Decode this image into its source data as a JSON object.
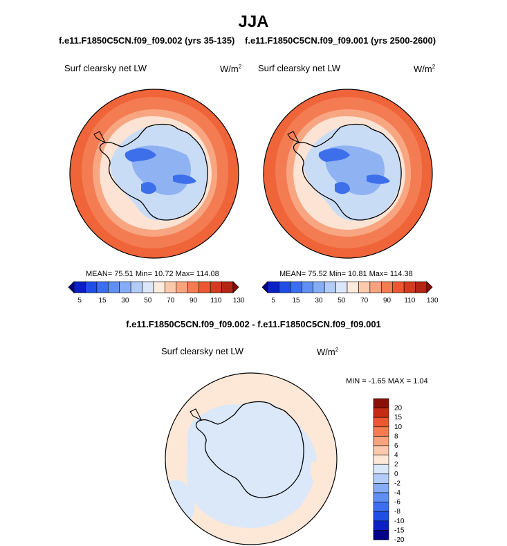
{
  "page_title": "JJA",
  "panels": {
    "left": {
      "case_title": "f.e11.F1850C5CN.f09_f09.002 (yrs 35-135)",
      "variable": "Surf clearsky net LW",
      "units_base": "W/m",
      "units_exp": "2",
      "stats": "MEAN=  75.51  Min=  10.72  Max= 114.08"
    },
    "right": {
      "case_title": "f.e11.F1850C5CN.f09_f09.001 (yrs 2500-2600)",
      "variable": "Surf clearsky net LW",
      "units_base": "W/m",
      "units_exp": "2",
      "stats": "MEAN=  75.52  Min=  10.81  Max= 114.38"
    },
    "diff": {
      "title": "f.e11.F1850C5CN.f09_f09.002 - f.e11.F1850C5CN.f09_f09.001",
      "variable": "Surf clearsky net LW",
      "units_base": "W/m",
      "units_exp": "2",
      "stats": "MIN =  -1.65 MAX =   1.04"
    }
  },
  "colors": {
    "abs_scale": [
      "#00008b",
      "#0a1fc4",
      "#1f4ee6",
      "#3b6ef0",
      "#5f8ff5",
      "#87acf6",
      "#b3cbf7",
      "#dbe6f8",
      "#fdebdd",
      "#fcc9ad",
      "#f9a37c",
      "#f57b50",
      "#ec5732",
      "#d43a1d",
      "#b42412",
      "#8b0f07"
    ],
    "diff_scale": [
      "#00008b",
      "#0a1fc4",
      "#1f4ee6",
      "#3b6ef0",
      "#5f8ff5",
      "#87acf6",
      "#b3cbf7",
      "#d9e8f9",
      "#fde8d8",
      "#fcc9ad",
      "#f9a37c",
      "#f57b50",
      "#ec5732",
      "#c62a12",
      "#8b0f07"
    ]
  },
  "chart_data": [
    {
      "type": "heatmap",
      "title": "Surf clearsky net LW",
      "projection": "south polar stereographic",
      "colorbar_orientation": "horizontal",
      "colorbar_ticks": [
        "5",
        "15",
        "30",
        "50",
        "70",
        "90",
        "110",
        "130"
      ],
      "stats": {
        "mean": 75.51,
        "min": 10.72,
        "max": 114.08
      }
    },
    {
      "type": "heatmap",
      "title": "Surf clearsky net LW",
      "projection": "south polar stereographic",
      "colorbar_orientation": "horizontal",
      "colorbar_ticks": [
        "5",
        "15",
        "30",
        "50",
        "70",
        "90",
        "110",
        "130"
      ],
      "stats": {
        "mean": 75.52,
        "min": 10.81,
        "max": 114.38
      }
    },
    {
      "type": "heatmap",
      "title": "Surf clearsky net LW",
      "projection": "south polar stereographic",
      "colorbar_orientation": "vertical",
      "colorbar_ticks": [
        "20",
        "15",
        "10",
        "8",
        "6",
        "4",
        "2",
        "0",
        "-2",
        "-4",
        "-6",
        "-8",
        "-10",
        "-15",
        "-20"
      ],
      "stats": {
        "min": -1.65,
        "max": 1.04
      }
    }
  ]
}
